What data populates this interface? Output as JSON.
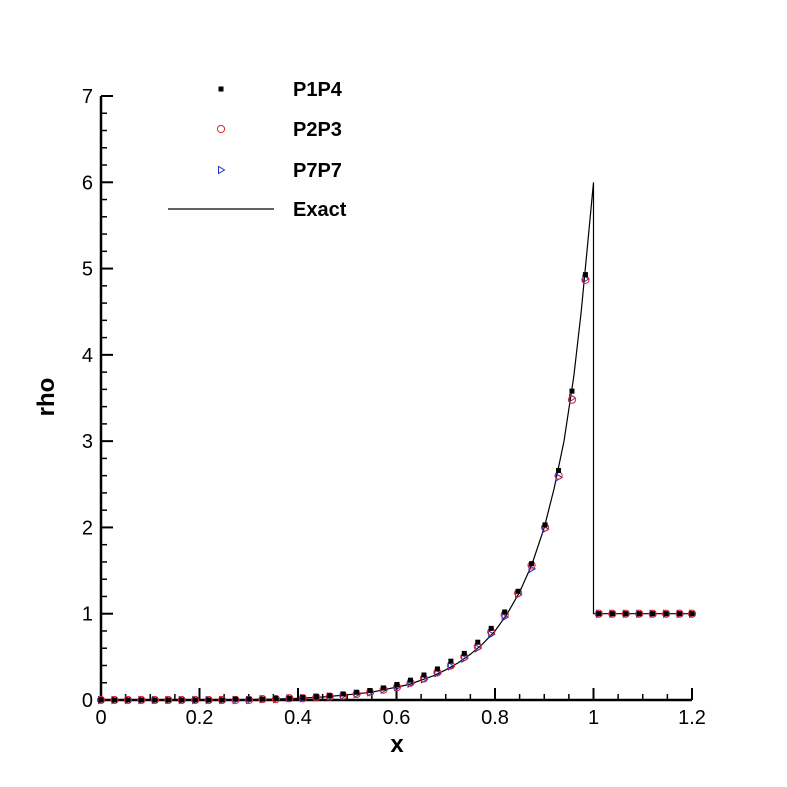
{
  "chart_data": {
    "type": "scatter",
    "xlabel": "x",
    "ylabel": "rho",
    "xlim": [
      0,
      1.2
    ],
    "ylim": [
      0,
      7
    ],
    "x_ticks": [
      "0",
      "0.2",
      "0.4",
      "0.6",
      "0.8",
      "1",
      "1.2"
    ],
    "y_ticks": [
      "0",
      "1",
      "2",
      "3",
      "4",
      "5",
      "6",
      "7"
    ],
    "legend_position": "top-left",
    "grid": false,
    "series": [
      {
        "name": "P1P4",
        "marker": "square-filled",
        "color": "#000000",
        "x": [
          0.0,
          0.0273,
          0.0546,
          0.082,
          0.1093,
          0.1366,
          0.1639,
          0.1913,
          0.2186,
          0.2459,
          0.2732,
          0.3005,
          0.3279,
          0.3552,
          0.3825,
          0.4098,
          0.4372,
          0.4645,
          0.4918,
          0.5191,
          0.5464,
          0.5738,
          0.6011,
          0.6284,
          0.6557,
          0.6831,
          0.7104,
          0.7377,
          0.765,
          0.7923,
          0.8197,
          0.847,
          0.8743,
          0.9016,
          0.929,
          0.9563,
          0.9836,
          1.0109,
          1.0383,
          1.0656,
          1.0929,
          1.1202,
          1.1475,
          1.1749,
          1.2
        ],
        "y": [
          0.0,
          0.0,
          0.0,
          0.0,
          0.0,
          0.0,
          0.0,
          0.0,
          0.0,
          0.0,
          0.01,
          0.01,
          0.01,
          0.02,
          0.02,
          0.03,
          0.04,
          0.05,
          0.07,
          0.09,
          0.11,
          0.14,
          0.18,
          0.23,
          0.29,
          0.36,
          0.45,
          0.54,
          0.67,
          0.83,
          1.02,
          1.26,
          1.58,
          2.03,
          2.66,
          3.58,
          4.93,
          1.0,
          1.0,
          1.0,
          1.0,
          1.0,
          1.0,
          1.0,
          1.0
        ]
      },
      {
        "name": "P2P3",
        "marker": "circle-open",
        "color": "#e0202a",
        "x": [
          0.0,
          0.0273,
          0.0546,
          0.082,
          0.1093,
          0.1366,
          0.1639,
          0.1913,
          0.2186,
          0.2459,
          0.2732,
          0.3005,
          0.3279,
          0.3552,
          0.3825,
          0.4098,
          0.4372,
          0.4645,
          0.4918,
          0.5191,
          0.5464,
          0.5738,
          0.6011,
          0.6284,
          0.6557,
          0.6831,
          0.7104,
          0.7377,
          0.765,
          0.7923,
          0.8197,
          0.847,
          0.8743,
          0.9016,
          0.929,
          0.9563,
          0.9836,
          1.0109,
          1.0383,
          1.0656,
          1.0929,
          1.1202,
          1.1475,
          1.1749,
          1.2
        ],
        "y": [
          0.0,
          0.0,
          0.0,
          0.0,
          0.0,
          0.0,
          0.0,
          0.0,
          0.0,
          0.0,
          0.0,
          0.0,
          0.01,
          0.01,
          0.02,
          0.02,
          0.03,
          0.04,
          0.05,
          0.07,
          0.09,
          0.12,
          0.15,
          0.2,
          0.25,
          0.32,
          0.4,
          0.5,
          0.62,
          0.79,
          0.99,
          1.24,
          1.56,
          2.0,
          2.6,
          3.48,
          4.87,
          1.0,
          1.0,
          1.0,
          1.0,
          1.0,
          1.0,
          1.0,
          1.0
        ]
      },
      {
        "name": "P7P7",
        "marker": "triangle-right-open",
        "color": "#2030c0",
        "x": [
          0.0,
          0.0273,
          0.0546,
          0.082,
          0.1093,
          0.1366,
          0.1639,
          0.1913,
          0.2186,
          0.2459,
          0.2732,
          0.3005,
          0.3279,
          0.3552,
          0.3825,
          0.4098,
          0.4372,
          0.4645,
          0.4918,
          0.5191,
          0.5464,
          0.5738,
          0.6011,
          0.6284,
          0.6557,
          0.6831,
          0.7104,
          0.7377,
          0.765,
          0.7923,
          0.8197,
          0.847,
          0.8743,
          0.9016,
          0.929,
          0.9563,
          0.9836,
          1.0109,
          1.0383,
          1.0656,
          1.0929,
          1.1202,
          1.1475,
          1.1749,
          1.2
        ],
        "y": [
          0.0,
          0.0,
          0.0,
          0.0,
          0.0,
          0.0,
          0.0,
          0.0,
          0.0,
          0.0,
          0.0,
          0.0,
          0.01,
          0.01,
          0.02,
          0.02,
          0.03,
          0.04,
          0.05,
          0.07,
          0.09,
          0.12,
          0.15,
          0.19,
          0.24,
          0.31,
          0.39,
          0.48,
          0.6,
          0.76,
          0.96,
          1.22,
          1.52,
          1.98,
          2.58,
          3.5,
          4.88,
          1.0,
          1.0,
          1.0,
          1.0,
          1.0,
          1.0,
          1.0,
          1.0
        ]
      }
    ],
    "exact": {
      "name": "Exact",
      "color": "#000000",
      "x": [
        0.0,
        0.1,
        0.2,
        0.3,
        0.35,
        0.4,
        0.45,
        0.5,
        0.55,
        0.6,
        0.625,
        0.65,
        0.675,
        0.7,
        0.725,
        0.75,
        0.775,
        0.8,
        0.825,
        0.85,
        0.875,
        0.9,
        0.92,
        0.94,
        0.96,
        0.975,
        0.99,
        1.0,
        1.0,
        1.02,
        1.1,
        1.2
      ],
      "y": [
        0.0,
        0.0,
        0.0,
        0.005,
        0.01,
        0.02,
        0.035,
        0.06,
        0.09,
        0.15,
        0.18,
        0.23,
        0.28,
        0.35,
        0.43,
        0.53,
        0.65,
        0.8,
        1.0,
        1.25,
        1.57,
        2.0,
        2.45,
        3.0,
        3.75,
        4.5,
        5.4,
        6.0,
        1.0,
        1.0,
        1.0,
        1.0
      ]
    }
  }
}
